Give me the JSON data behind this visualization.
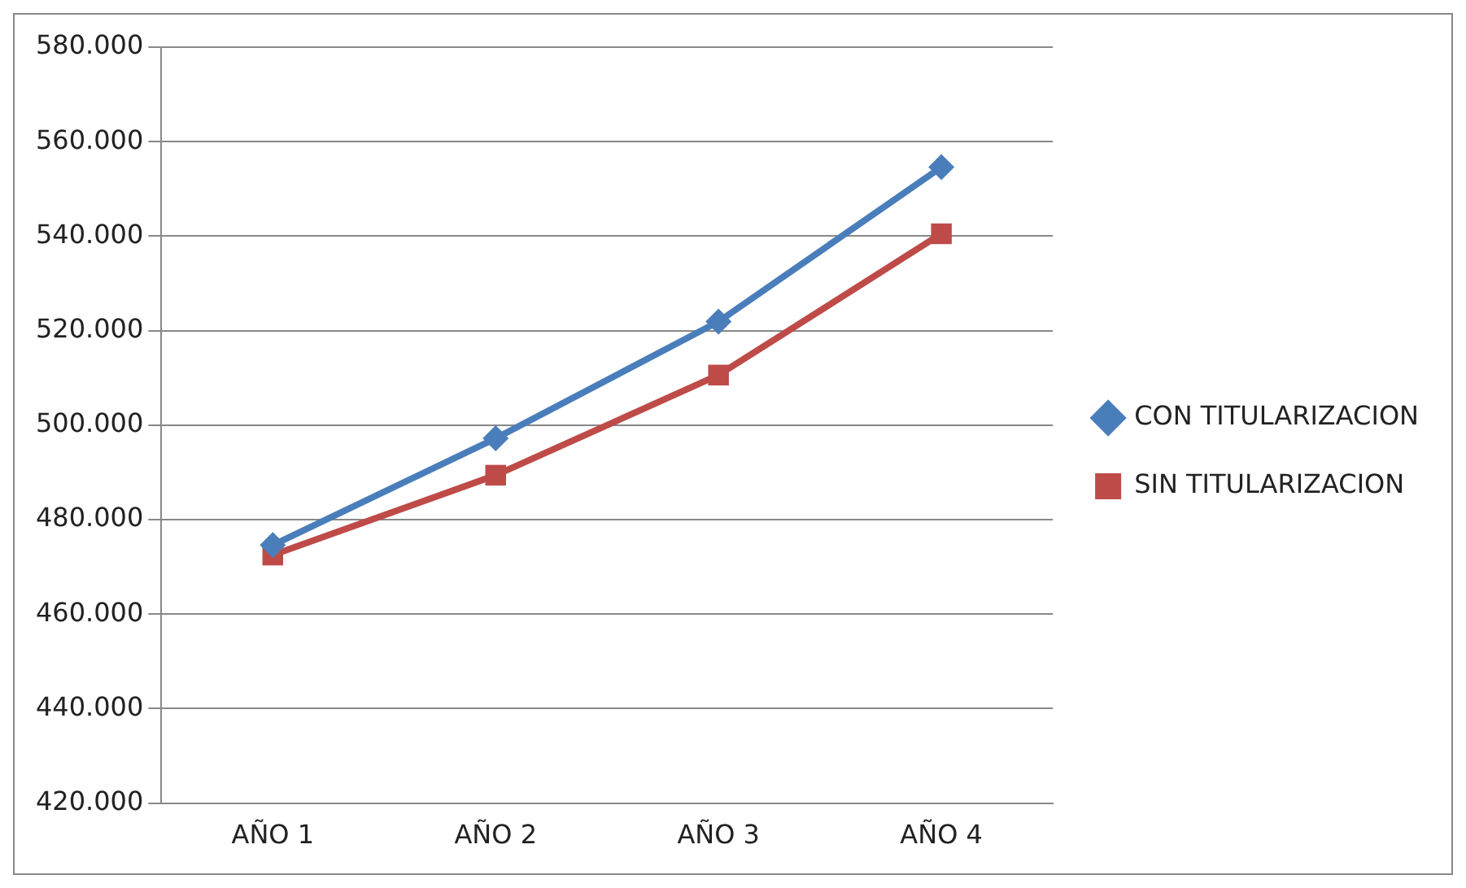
{
  "chart_data": {
    "type": "line",
    "categories": [
      "AÑO 1",
      "AÑO 2",
      "AÑO 3",
      "AÑO 4"
    ],
    "series": [
      {
        "name": "CON TITULARIZACION",
        "color": "#4a7ebb",
        "marker": "diamond",
        "values": [
          474600,
          497200,
          521900,
          554600
        ]
      },
      {
        "name": "SIN TITULARIZACION",
        "color": "#be4b48",
        "marker": "square",
        "values": [
          472500,
          489400,
          510600,
          540500
        ]
      }
    ],
    "ylim": [
      420000,
      580000
    ],
    "yticks": [
      {
        "value": 420000,
        "label": "420.000"
      },
      {
        "value": 440000,
        "label": "440.000"
      },
      {
        "value": 460000,
        "label": "460.000"
      },
      {
        "value": 480000,
        "label": "480.000"
      },
      {
        "value": 500000,
        "label": "500.000"
      },
      {
        "value": 520000,
        "label": "520.000"
      },
      {
        "value": 540000,
        "label": "540.000"
      },
      {
        "value": 560000,
        "label": "560.000"
      },
      {
        "value": 580000,
        "label": "580.000"
      }
    ],
    "grid": "y",
    "legend": "right",
    "line_style": "solid"
  }
}
